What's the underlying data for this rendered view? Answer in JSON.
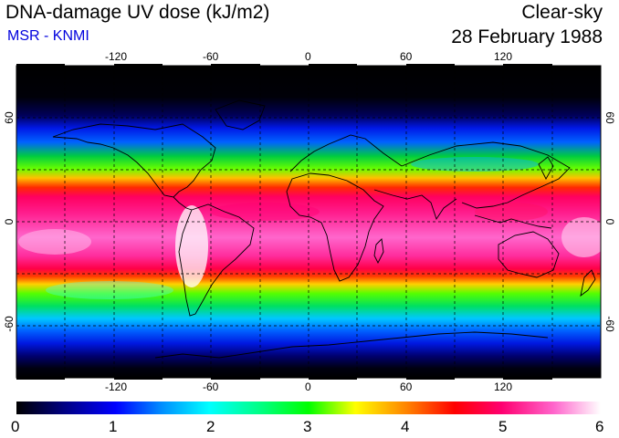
{
  "map": {
    "title": "DNA-damage UV dose (kJ/m2)",
    "subtitle": "MSR - KNMI",
    "condition": "Clear-sky",
    "date": "28 February 1988",
    "lon_ticks": [
      "-120",
      "-60",
      "0",
      "60",
      "120"
    ],
    "lat_ticks": [
      "60",
      "0",
      "-60"
    ],
    "projection": "equirectangular",
    "grid": "dashed 30 degree graticule",
    "colors": {
      "subtitle": "#0000dd",
      "scale": [
        "#000000",
        "#000080",
        "#0000ff",
        "#00ffff",
        "#00ff00",
        "#ffff00",
        "#ff0000",
        "#ff1493",
        "#ffffff"
      ]
    }
  },
  "colorbar": {
    "labels": [
      "0",
      "1",
      "2",
      "3",
      "4",
      "5",
      "6"
    ],
    "min": 0,
    "max": 6
  }
}
